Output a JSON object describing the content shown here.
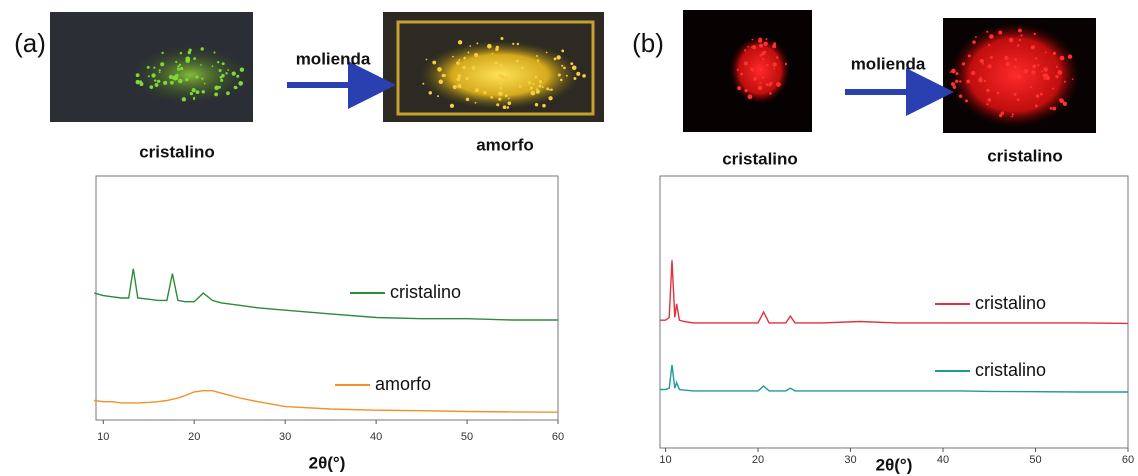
{
  "chart_data": [
    {
      "type": "line",
      "panel_label": "(a)",
      "arrow_label": "molienda",
      "photo_captions": [
        "cristalino",
        "amorfo"
      ],
      "xlabel": "2θ(°)",
      "xlim": [
        9.2,
        60
      ],
      "xticks": [
        10,
        20,
        30,
        40,
        50,
        60
      ],
      "ylim": [
        0,
        100
      ],
      "x": [
        9,
        10,
        11,
        12,
        12.8,
        13.3,
        13.8,
        15,
        16,
        17,
        17.6,
        18.2,
        19,
        20,
        21,
        22,
        23,
        25,
        27,
        30,
        35,
        40,
        45,
        50,
        55,
        60
      ],
      "series": [
        {
          "name": "cristalino",
          "color": "#2e8b3a",
          "values": [
            52,
            51,
            50.5,
            50,
            50,
            62,
            50,
            49.5,
            49,
            49,
            60,
            49,
            48.5,
            48.5,
            52,
            49,
            48,
            47,
            46,
            45,
            43.5,
            42,
            41.5,
            41.5,
            41,
            41
          ]
        },
        {
          "name": "amorfo",
          "color": "#f0922b",
          "values": [
            8,
            7.5,
            7.5,
            7,
            7,
            7,
            7,
            7.2,
            7.5,
            8,
            8.5,
            9,
            10,
            11.5,
            12,
            12,
            11,
            9,
            7.5,
            5.5,
            4.5,
            4,
            3.8,
            3.5,
            3.3,
            3.2
          ]
        }
      ]
    },
    {
      "type": "line",
      "panel_label": "(b)",
      "arrow_label": "molienda",
      "photo_captions": [
        "cristalino",
        "cristalino"
      ],
      "xlabel": "2θ(°)",
      "xlim": [
        9.4,
        60
      ],
      "xticks": [
        10,
        20,
        30,
        40,
        50,
        60
      ],
      "ylim": [
        0,
        100
      ],
      "x": [
        9.4,
        10,
        10.4,
        10.7,
        11,
        11.2,
        11.5,
        12,
        13,
        15,
        18,
        20,
        20.6,
        21.2,
        23,
        23.5,
        24,
        27,
        31,
        35,
        40,
        42,
        45,
        50,
        55,
        60
      ],
      "series": [
        {
          "name": "cristalino",
          "color": "#e0323c",
          "values": [
            47,
            47,
            48,
            69,
            48,
            53,
            47,
            46.5,
            46,
            46,
            46,
            46,
            50,
            46,
            46,
            48.5,
            46,
            46,
            46.5,
            46,
            46,
            46,
            46,
            46,
            46,
            45.8
          ]
        },
        {
          "name": "cristalino",
          "color": "#1f9a9a",
          "values": [
            21.5,
            21.5,
            22,
            30.5,
            22,
            24,
            21.5,
            21.3,
            21,
            21,
            21,
            21,
            22.8,
            21,
            21,
            22,
            21,
            21,
            21,
            21,
            21,
            21,
            20.8,
            20.7,
            20.6,
            20.6
          ]
        }
      ]
    }
  ]
}
